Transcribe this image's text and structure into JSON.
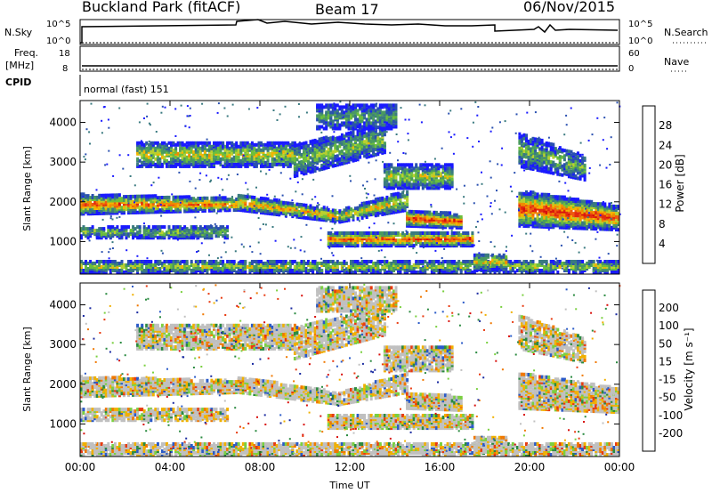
{
  "header": {
    "title": "Buckland Park (fitACF)",
    "beam": "Beam 17",
    "date": "06/Nov/2015"
  },
  "top_panels": {
    "nsky_label": "N.Sky",
    "nsearch_label": "N.Search",
    "nsky_ticks": [
      "10^5",
      "10^0"
    ],
    "nsearch_ticks": [
      "10^5",
      "10^0"
    ],
    "freq_label": "Freq.",
    "freq_unit": "[MHz]",
    "freq_ticks": [
      "18",
      "8"
    ],
    "nave_label": "Nave",
    "nave_ticks": [
      "60",
      "0"
    ],
    "cpid_label": "CPID",
    "cpid_text": "normal (fast) 151"
  },
  "chart_data": [
    {
      "type": "heatmap",
      "name": "power-panel",
      "ylabel": "Slant Range [km]",
      "xlabel": "",
      "xticks": [
        "00:00",
        "04:00",
        "08:00",
        "12:00",
        "16:00",
        "20:00",
        "00:00"
      ],
      "yticks": [
        "1000",
        "2000",
        "3000",
        "4000"
      ],
      "xlim_hours": [
        0,
        24
      ],
      "ylim_km": [
        180,
        4550
      ],
      "colorbar": {
        "label": "Power [dB]",
        "ticks": [
          "4",
          "8",
          "12",
          "16",
          "20",
          "24",
          "28"
        ],
        "colors": [
          "#1a1aff",
          "#2a50b0",
          "#3a7a80",
          "#4a9a60",
          "#6cbf3c",
          "#b8d030",
          "#f4b400",
          "#f08c00",
          "#ee5a10",
          "#e22a10",
          "#d8100c"
        ]
      }
    },
    {
      "type": "heatmap",
      "name": "velocity-panel",
      "ylabel": "Slant Range [km]",
      "xlabel": "Time UT",
      "xticks": [
        "00:00",
        "04:00",
        "08:00",
        "12:00",
        "16:00",
        "20:00",
        "00:00"
      ],
      "yticks": [
        "1000",
        "2000",
        "3000",
        "4000"
      ],
      "xlim_hours": [
        0,
        24
      ],
      "ylim_km": [
        180,
        4550
      ],
      "colorbar": {
        "label": "Velocity [m s⁻¹]",
        "ticks": [
          "200",
          "100",
          "50",
          "15",
          "-15",
          "-50",
          "-100",
          "-200"
        ],
        "colors": [
          "#1a2aa0",
          "#2a5ac8",
          "#2a8a40",
          "#7ad040",
          "#c0c0c0",
          "#f0b000",
          "#f07800",
          "#e83a10",
          "#d8100c"
        ]
      }
    }
  ]
}
